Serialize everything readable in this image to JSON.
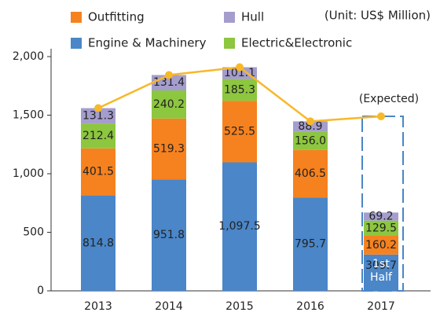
{
  "chart_data": {
    "type": "bar",
    "stacked": true,
    "unit_note": "(Unit: US$ Million)",
    "categories": [
      "2013",
      "2014",
      "2015",
      "2016",
      "2017"
    ],
    "series": [
      {
        "name": "Engine & Machinery",
        "color": "#4a86c8",
        "values": [
          814.8,
          951.8,
          1097.5,
          795.7,
          309.7
        ],
        "value_labels": [
          "814.8",
          "951.8",
          "1,097.5",
          "795.7",
          "309.7"
        ]
      },
      {
        "name": "Outfitting",
        "color": "#f5821f",
        "values": [
          401.5,
          519.3,
          525.5,
          406.5,
          160.2
        ]
      },
      {
        "name": "Electric&Electronic",
        "color": "#8dc63f",
        "values": [
          212.4,
          240.2,
          185.3,
          156.0,
          129.5
        ],
        "value_labels": [
          "212.4",
          "240.2",
          "185.3",
          "156.0",
          "129.5"
        ]
      },
      {
        "name": "Hull",
        "color": "#a59dcd",
        "values": [
          131.3,
          131.4,
          101.1,
          88.9,
          69.2
        ]
      }
    ],
    "line": {
      "color": "#f7b82a",
      "values": [
        1560,
        1843,
        1909,
        1447,
        1490
      ]
    },
    "annotations": {
      "expected": "(Expected)",
      "half": [
        "1st",
        "Half"
      ]
    },
    "ylim": [
      0,
      2000
    ],
    "yticks": [
      0,
      500,
      {
        "value": 1000,
        "label": "1,000"
      },
      {
        "value": 1500,
        "label": "1,500"
      },
      {
        "value": 2000,
        "label": "2,000"
      }
    ]
  }
}
